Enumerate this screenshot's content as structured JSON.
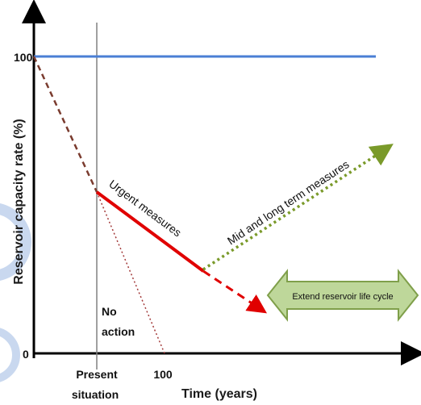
{
  "diagram": {
    "y_axis_title": "Reservoir capacity rate (%)",
    "x_axis_title": "Time (years)",
    "y_tick_top": "100",
    "y_tick_bottom": "0",
    "x_tick_present_line1": "Present",
    "x_tick_present_line2": "situation",
    "x_tick_100": "100",
    "label_urgent": "Urgent measures",
    "label_midlong": "Mid and long term measures",
    "label_no_action_line1": "No",
    "label_no_action_line2": "action",
    "arrow_label": "Extend reservoir life cycle"
  },
  "colors": {
    "baseline": "#4a7fd4",
    "history": "#7a3b2e",
    "urgent": "#e00000",
    "continuation": "#e00000",
    "midlong": "#7a9a2a",
    "no_action": "#a33a3a",
    "present_line": "#808080",
    "arrow_fill": "#bed79a",
    "arrow_stroke": "#7f9f4a",
    "watermark": "#c9d8ef"
  }
}
